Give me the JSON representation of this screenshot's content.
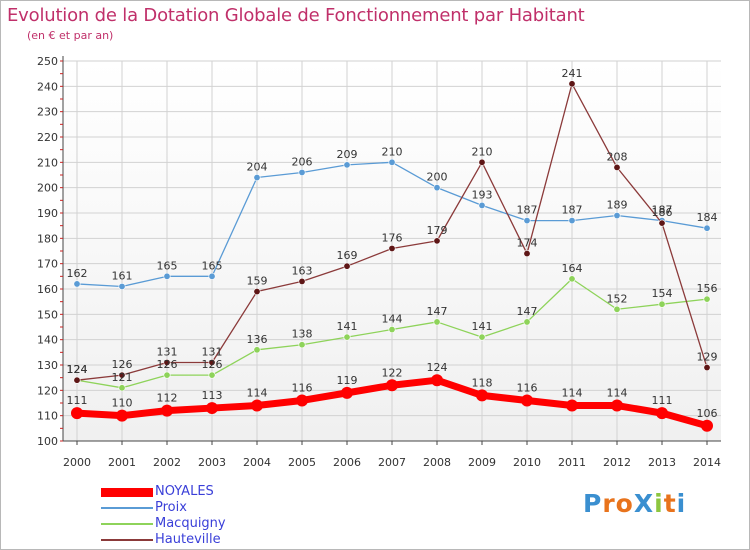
{
  "title": "Evolution de la Dotation Globale de Fonctionnement par Habitant",
  "subtitle": "(en € et par an)",
  "brand": {
    "text": "ProXiti",
    "letters": [
      "P",
      "r",
      "o",
      "X",
      "i",
      "t",
      "i"
    ],
    "letter_colors": [
      "#3a8fd0",
      "#e8731c",
      "#e8731c",
      "#3a8fd0",
      "#8dc63f",
      "#e8731c",
      "#3a8fd0"
    ]
  },
  "chart_data": {
    "type": "line",
    "x": [
      "2000",
      "2001",
      "2002",
      "2003",
      "2004",
      "2005",
      "2006",
      "2007",
      "2008",
      "2009",
      "2010",
      "2011",
      "2012",
      "2013",
      "2014"
    ],
    "ylim": [
      100,
      250
    ],
    "yticks": [
      100,
      110,
      120,
      130,
      140,
      150,
      160,
      170,
      180,
      190,
      200,
      210,
      220,
      230,
      240,
      250
    ],
    "grid": true,
    "legend_position": "bottom-left",
    "series": [
      {
        "name": "Proix",
        "color": "#5a9bd5",
        "line_width": 1.3,
        "marker_radius": 3.2,
        "values": [
          162,
          161,
          165,
          165,
          204,
          206,
          209,
          210,
          200,
          193,
          187,
          187,
          189,
          187,
          184
        ]
      },
      {
        "name": "Macquigny",
        "color": "#8ed35a",
        "line_width": 1.3,
        "marker_radius": 3.2,
        "values": [
          124,
          121,
          126,
          126,
          136,
          138,
          141,
          144,
          147,
          141,
          147,
          164,
          152,
          154,
          156
        ]
      },
      {
        "name": "Hauteville",
        "color": "#8b3a3a",
        "marker_color": "#5e1616",
        "line_width": 1.3,
        "marker_radius": 3.2,
        "values": [
          124,
          126,
          131,
          131,
          159,
          163,
          169,
          176,
          179,
          210,
          174,
          241,
          208,
          186,
          129
        ]
      },
      {
        "name": "NOYALES",
        "color": "#ff0000",
        "line_width": 7,
        "marker_radius": 6,
        "values": [
          111,
          110,
          112,
          113,
          114,
          116,
          119,
          122,
          124,
          118,
          116,
          114,
          114,
          111,
          106
        ]
      }
    ]
  }
}
